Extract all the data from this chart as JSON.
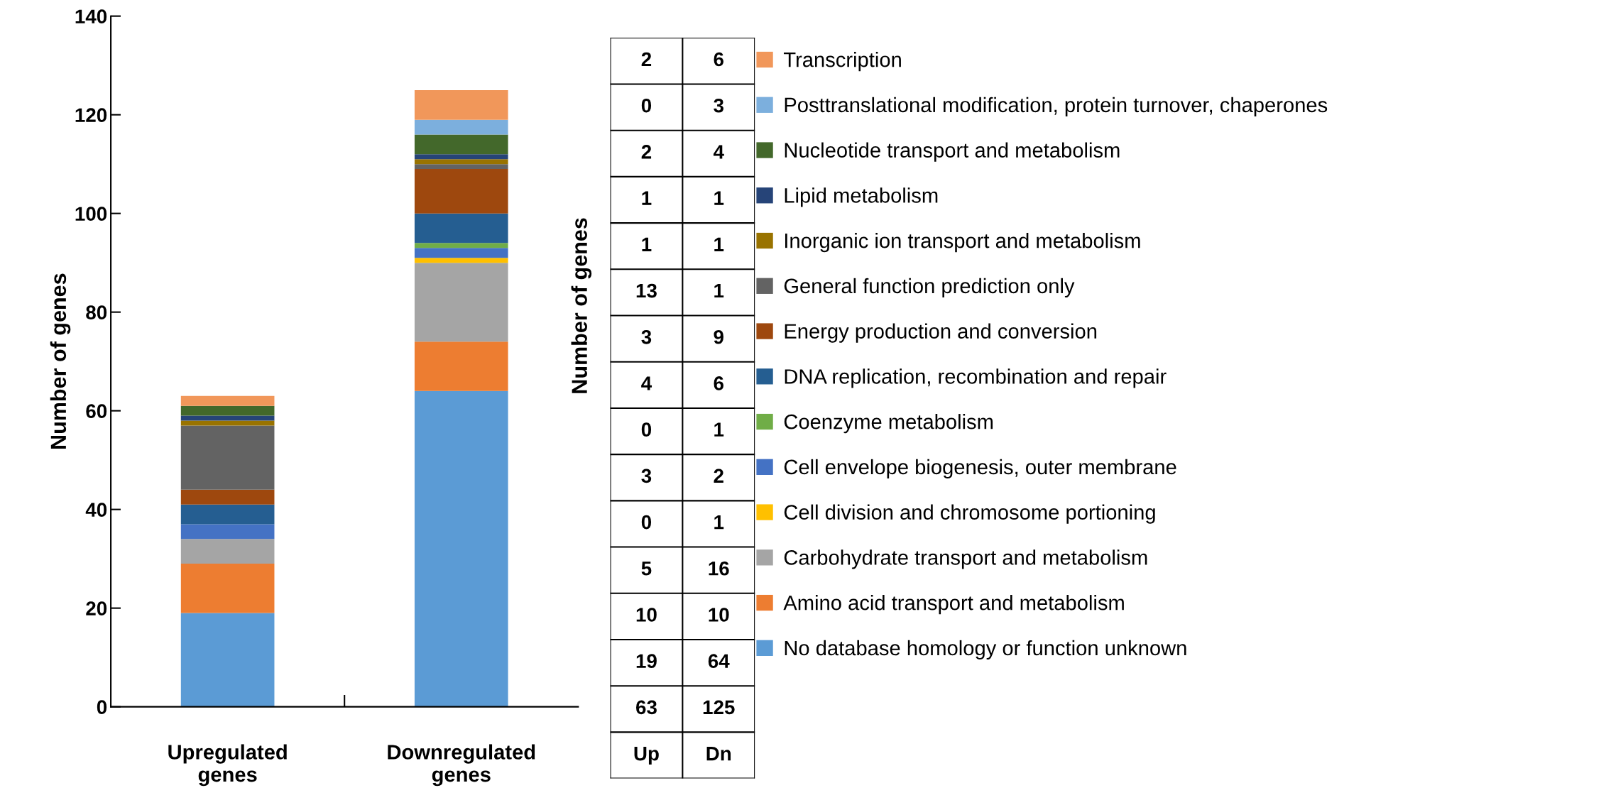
{
  "chart_data": {
    "type": "bar",
    "stacked": true,
    "ylabel": "Number of genes",
    "categories": [
      "Upregulated\ngenes",
      "Downregulated\ngenes"
    ],
    "series": [
      {
        "name": "No database homology or function unknown",
        "color": "#5b9bd5",
        "values": [
          19,
          64
        ]
      },
      {
        "name": "Amino acid transport and metabolism",
        "color": "#ed7d31",
        "values": [
          10,
          10
        ]
      },
      {
        "name": "Carbohydrate transport and metabolism",
        "color": "#a5a5a5",
        "values": [
          5,
          16
        ]
      },
      {
        "name": "Cell division and chromosome portioning",
        "color": "#ffc000",
        "values": [
          0,
          1
        ]
      },
      {
        "name": "Cell envelope biogenesis, outer membrane",
        "color": "#4472c4",
        "values": [
          3,
          2
        ]
      },
      {
        "name": "Coenzyme metabolism",
        "color": "#70ad47",
        "values": [
          0,
          1
        ]
      },
      {
        "name": "DNA replication, recombination and repair",
        "color": "#255e91",
        "values": [
          4,
          6
        ]
      },
      {
        "name": "Energy production and conversion",
        "color": "#9e480e",
        "values": [
          3,
          9
        ]
      },
      {
        "name": "General function prediction only",
        "color": "#636363",
        "values": [
          13,
          1
        ]
      },
      {
        "name": "Inorganic ion transport and metabolism",
        "color": "#997300",
        "values": [
          1,
          1
        ]
      },
      {
        "name": "Lipid metabolism",
        "color": "#264478",
        "values": [
          1,
          1
        ]
      },
      {
        "name": "Nucleotide transport and metabolism",
        "color": "#43682b",
        "values": [
          2,
          4
        ]
      },
      {
        "name": "Posttranslational modification, protein turnover, chaperones",
        "color": "#7cafdd",
        "values": [
          0,
          3
        ]
      },
      {
        "name": "Transcription",
        "color": "#f1975a",
        "values": [
          2,
          6
        ]
      }
    ],
    "ylim": [
      0,
      140
    ],
    "yticks": [
      0,
      20,
      40,
      60,
      80,
      100,
      120,
      140
    ],
    "annotations": [
      "Number of genes",
      "2",
      "6",
      "0",
      "3",
      "2",
      "4",
      "1",
      "1",
      "1",
      "1",
      "13",
      "1",
      "3",
      "9",
      "4",
      "6",
      "0",
      "1",
      "3",
      "2",
      "0",
      "1",
      "5",
      "16",
      "10",
      "10",
      "19",
      "64",
      "63",
      "125",
      "Up",
      "Dn"
    ],
    "legend": "right",
    "grid": false
  }
}
